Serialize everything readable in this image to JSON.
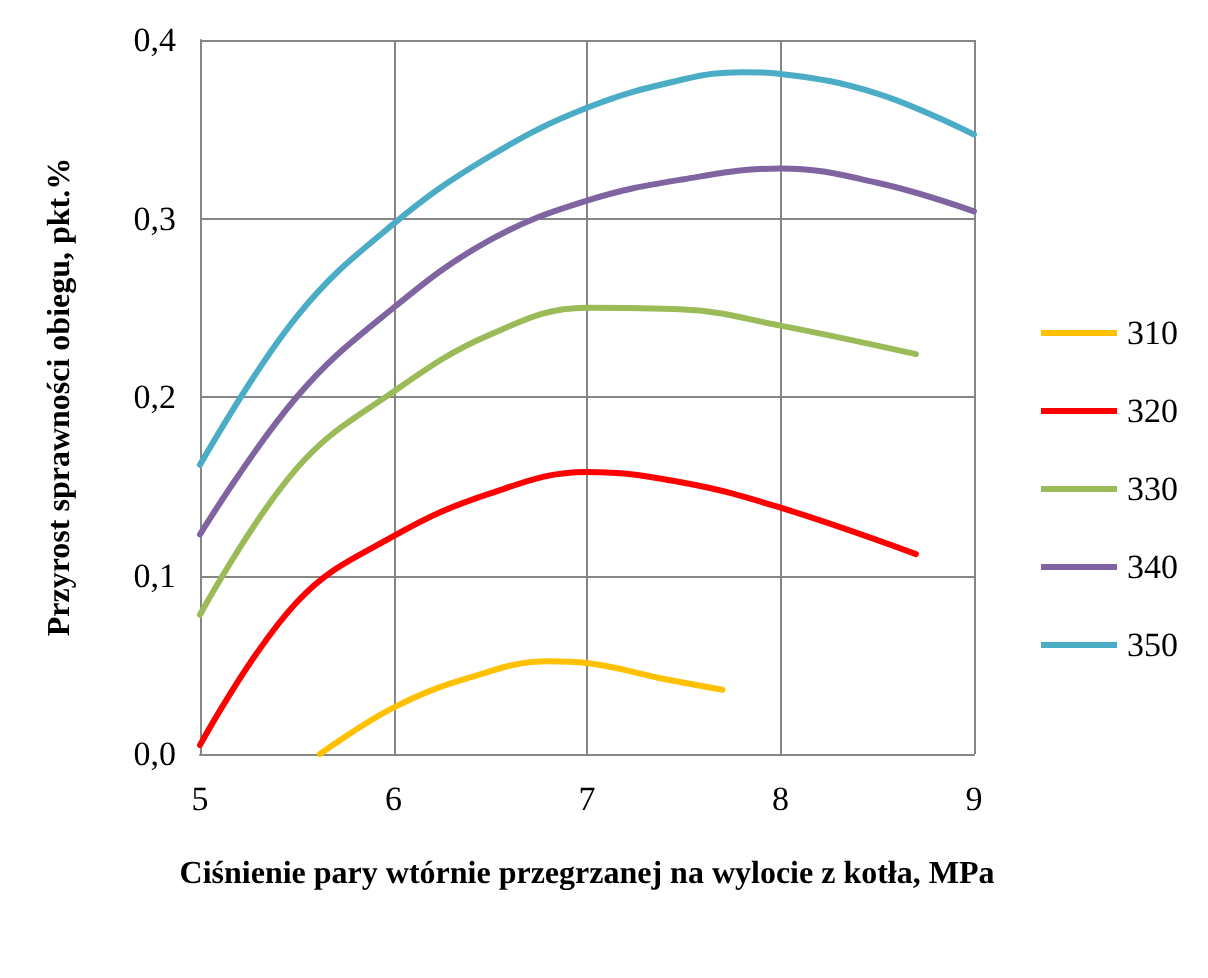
{
  "chart_data": {
    "type": "line",
    "xlabel": "Ciśnienie pary wtórnie przegrzanej na wylocie z kotła, MPa",
    "ylabel": "Przyrost sprawności obiegu, pkt.%",
    "xlim": [
      5,
      9
    ],
    "xticks": [
      5,
      6,
      7,
      8,
      9
    ],
    "ylim": [
      0,
      0.4
    ],
    "yticks": [
      {
        "value": 0,
        "label": "0,0"
      },
      {
        "value": 0.1,
        "label": "0,1"
      },
      {
        "value": 0.2,
        "label": "0,2"
      },
      {
        "value": 0.3,
        "label": "0,3"
      },
      {
        "value": 0.4,
        "label": "0,4"
      }
    ],
    "grid": true,
    "legend": "right",
    "marker": "none",
    "line_style": "solid",
    "series": [
      {
        "name": "310",
        "color": "#ffc000",
        "x": [
          5.62,
          6,
          6.4,
          6.8,
          7,
          7.4,
          7.7
        ],
        "values": [
          0,
          0.026,
          0.043,
          0.052,
          0.051,
          0.042,
          0.036
        ]
      },
      {
        "name": "320",
        "color": "#ff0000",
        "x": [
          5,
          5.5,
          6,
          6.5,
          7,
          7.5,
          8,
          8.7
        ],
        "values": [
          0.005,
          0.085,
          0.122,
          0.146,
          0.158,
          0.152,
          0.138,
          0.112
        ]
      },
      {
        "name": "330",
        "color": "#9bbb59",
        "x": [
          5,
          5.5,
          6,
          6.5,
          7,
          7.5,
          8,
          8.7
        ],
        "values": [
          0.078,
          0.16,
          0.203,
          0.235,
          0.25,
          0.249,
          0.24,
          0.224
        ]
      },
      {
        "name": "340",
        "color": "#8064a2",
        "x": [
          5,
          5.5,
          6,
          6.5,
          7,
          7.5,
          8,
          8.5,
          9
        ],
        "values": [
          0.123,
          0.2,
          0.25,
          0.288,
          0.31,
          0.322,
          0.328,
          0.32,
          0.304
        ]
      },
      {
        "name": "350",
        "color": "#4bacc6",
        "x": [
          5,
          5.5,
          6,
          6.5,
          7,
          7.5,
          7.8,
          8,
          8.5,
          9
        ],
        "values": [
          0.162,
          0.245,
          0.297,
          0.335,
          0.362,
          0.378,
          0.382,
          0.381,
          0.37,
          0.347
        ]
      }
    ]
  }
}
